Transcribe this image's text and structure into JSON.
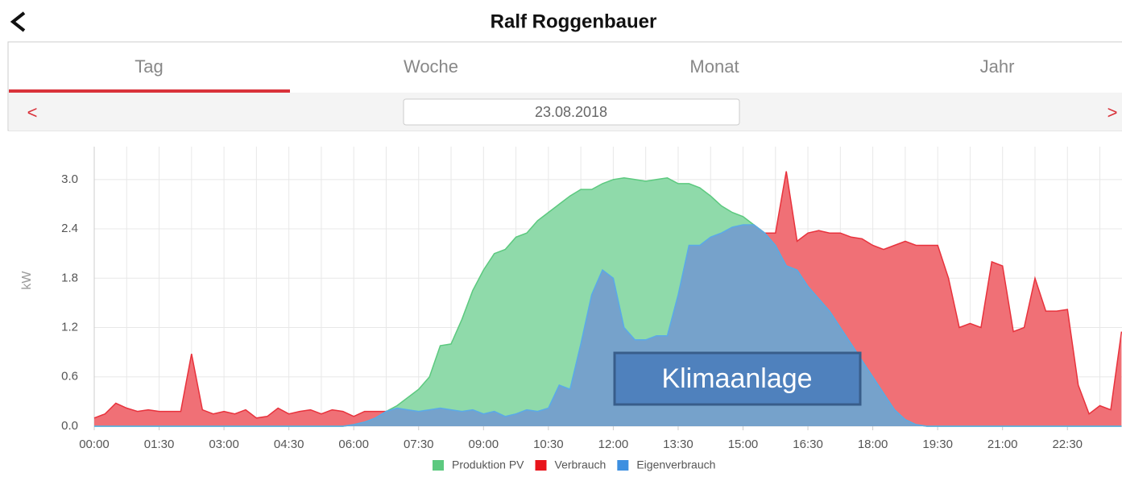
{
  "header": {
    "title": "Ralf Roggenbauer"
  },
  "tabs": [
    "Tag",
    "Woche",
    "Monat",
    "Jahr"
  ],
  "date_nav": {
    "prev": "<",
    "date": "23.08.2018",
    "next": ">"
  },
  "chart_data": {
    "type": "area",
    "y_label": "kW",
    "annotation": "Klimaanlage",
    "x": [
      "00:00",
      "00:15",
      "00:30",
      "00:45",
      "01:00",
      "01:15",
      "01:30",
      "01:45",
      "02:00",
      "02:15",
      "02:30",
      "02:45",
      "03:00",
      "03:15",
      "03:30",
      "03:45",
      "04:00",
      "04:15",
      "04:30",
      "04:45",
      "05:00",
      "05:15",
      "05:30",
      "05:45",
      "06:00",
      "06:15",
      "06:30",
      "06:45",
      "07:00",
      "07:15",
      "07:30",
      "07:45",
      "08:00",
      "08:15",
      "08:30",
      "08:45",
      "09:00",
      "09:15",
      "09:30",
      "09:45",
      "10:00",
      "10:15",
      "10:30",
      "10:45",
      "11:00",
      "11:15",
      "11:30",
      "11:45",
      "12:00",
      "12:15",
      "12:30",
      "12:45",
      "13:00",
      "13:15",
      "13:30",
      "13:45",
      "14:00",
      "14:15",
      "14:30",
      "14:45",
      "15:00",
      "15:15",
      "15:30",
      "15:45",
      "16:00",
      "16:15",
      "16:30",
      "16:45",
      "17:00",
      "17:15",
      "17:30",
      "17:45",
      "18:00",
      "18:15",
      "18:30",
      "18:45",
      "19:00",
      "19:15",
      "19:30",
      "19:45",
      "20:00",
      "20:15",
      "20:30",
      "20:45",
      "21:00",
      "21:15",
      "21:30",
      "21:45",
      "22:00",
      "22:15",
      "22:30",
      "22:45",
      "23:00",
      "23:15",
      "23:30",
      "23:45"
    ],
    "xticks": [
      "00:00",
      "01:30",
      "03:00",
      "04:30",
      "06:00",
      "07:30",
      "09:00",
      "10:30",
      "12:00",
      "13:30",
      "15:00",
      "16:30",
      "18:00",
      "19:30",
      "21:00",
      "22:30"
    ],
    "ylim": [
      0,
      3.4
    ],
    "yticks": [
      {
        "value": 0,
        "label": "0.0"
      },
      0.6,
      1.2,
      1.8,
      2.4,
      {
        "value": 3,
        "label": "3.0"
      }
    ],
    "grid": true,
    "series": [
      {
        "name": "Verbrauch",
        "color": "#e8141b",
        "values": [
          0.1,
          0.15,
          0.28,
          0.22,
          0.18,
          0.2,
          0.18,
          0.18,
          0.18,
          0.88,
          0.2,
          0.15,
          0.18,
          0.15,
          0.2,
          0.1,
          0.12,
          0.22,
          0.15,
          0.18,
          0.2,
          0.15,
          0.2,
          0.18,
          0.12,
          0.18,
          0.18,
          0.18,
          0.22,
          0.2,
          0.18,
          0.2,
          0.22,
          0.2,
          0.18,
          0.2,
          0.15,
          0.18,
          0.12,
          0.15,
          0.2,
          0.18,
          0.22,
          0.5,
          0.45,
          1.0,
          1.6,
          1.9,
          1.8,
          1.2,
          1.05,
          1.05,
          1.1,
          1.1,
          1.6,
          2.2,
          2.2,
          2.3,
          2.35,
          2.42,
          2.45,
          2.45,
          2.35,
          2.35,
          3.1,
          2.25,
          2.35,
          2.38,
          2.35,
          2.35,
          2.3,
          2.28,
          2.2,
          2.15,
          2.2,
          2.25,
          2.2,
          2.2,
          2.2,
          1.8,
          1.2,
          1.25,
          1.2,
          2.0,
          1.95,
          1.15,
          1.2,
          1.8,
          1.4,
          1.4,
          1.42,
          0.5,
          0.15,
          0.25,
          0.2,
          1.15
        ]
      },
      {
        "name": "Produktion PV",
        "color": "#5cc97f",
        "values": [
          0,
          0,
          0,
          0,
          0,
          0,
          0,
          0,
          0,
          0,
          0,
          0,
          0,
          0,
          0,
          0,
          0,
          0,
          0,
          0,
          0,
          0,
          0,
          0,
          0.02,
          0.05,
          0.1,
          0.18,
          0.25,
          0.35,
          0.45,
          0.6,
          0.98,
          1.0,
          1.3,
          1.65,
          1.9,
          2.1,
          2.15,
          2.3,
          2.35,
          2.5,
          2.6,
          2.7,
          2.8,
          2.88,
          2.88,
          2.95,
          3.0,
          3.02,
          3.0,
          2.98,
          3.0,
          3.02,
          2.95,
          2.95,
          2.9,
          2.8,
          2.68,
          2.6,
          2.55,
          2.45,
          2.35,
          2.2,
          1.95,
          1.9,
          1.7,
          1.55,
          1.4,
          1.2,
          1.0,
          0.8,
          0.6,
          0.4,
          0.2,
          0.08,
          0.02,
          0,
          0,
          0,
          0,
          0,
          0,
          0,
          0,
          0,
          0,
          0,
          0,
          0,
          0,
          0,
          0,
          0,
          0,
          0
        ]
      },
      {
        "name": "Eigenverbrauch",
        "color": "#3d8fe0",
        "values": [
          0,
          0,
          0,
          0,
          0,
          0,
          0,
          0,
          0,
          0,
          0,
          0,
          0,
          0,
          0,
          0,
          0,
          0,
          0,
          0,
          0,
          0,
          0,
          0,
          0.02,
          0.05,
          0.1,
          0.18,
          0.22,
          0.2,
          0.18,
          0.2,
          0.22,
          0.2,
          0.18,
          0.2,
          0.15,
          0.18,
          0.12,
          0.15,
          0.2,
          0.18,
          0.22,
          0.5,
          0.45,
          1.0,
          1.6,
          1.9,
          1.8,
          1.2,
          1.05,
          1.05,
          1.1,
          1.1,
          1.6,
          2.2,
          2.2,
          2.3,
          2.35,
          2.42,
          2.45,
          2.45,
          2.35,
          2.2,
          1.95,
          1.9,
          1.7,
          1.55,
          1.4,
          1.2,
          1.0,
          0.8,
          0.6,
          0.4,
          0.2,
          0.08,
          0.02,
          0,
          0,
          0,
          0,
          0,
          0,
          0,
          0,
          0,
          0,
          0,
          0,
          0,
          0,
          0,
          0,
          0,
          0,
          0
        ]
      }
    ],
    "legend_order": [
      "Produktion PV",
      "Verbrauch",
      "Eigenverbrauch"
    ]
  }
}
